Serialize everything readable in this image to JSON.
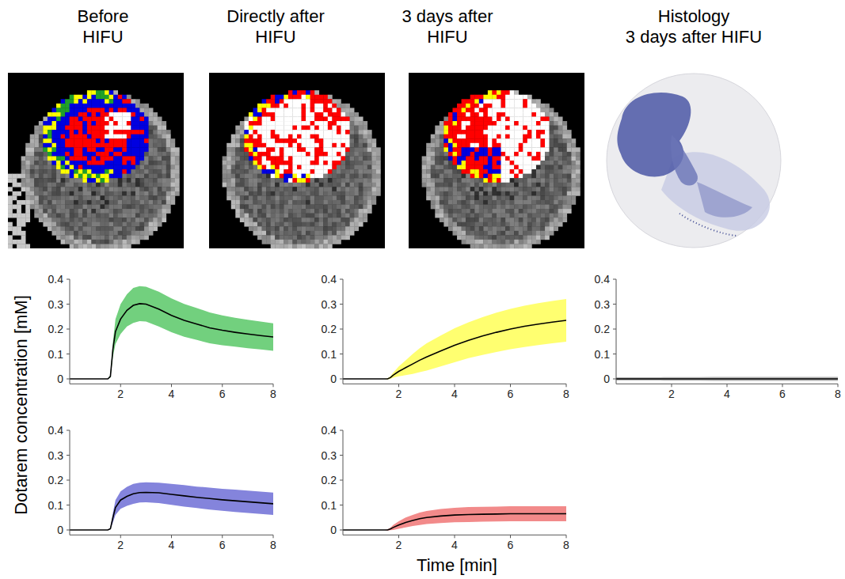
{
  "figure": {
    "column_titles": [
      "Before\nHIFU",
      "Directly after\nHIFU",
      "3 days after\nHIFU",
      "Histology\n3 days after HIFU"
    ],
    "y_label": "Dotarem concentration [mM]",
    "x_label": "Time [min]"
  },
  "chart_data": [
    {
      "type": "line",
      "x": [
        0,
        0.5,
        1,
        1.5,
        1.6,
        1.7,
        1.8,
        2,
        2.25,
        2.5,
        2.75,
        3,
        3.5,
        4,
        4.5,
        5,
        5.5,
        6,
        6.5,
        7,
        7.5,
        8
      ],
      "series": [
        {
          "color": "#72d07e",
          "values": [
            0,
            0,
            0,
            0,
            0.01,
            0.12,
            0.19,
            0.24,
            0.275,
            0.295,
            0.302,
            0.3,
            0.28,
            0.255,
            0.235,
            0.22,
            0.205,
            0.195,
            0.187,
            0.18,
            0.174,
            0.168
          ],
          "error": [
            0,
            0,
            0,
            0,
            0.005,
            0.03,
            0.05,
            0.06,
            0.065,
            0.07,
            0.07,
            0.07,
            0.07,
            0.068,
            0.066,
            0.064,
            0.062,
            0.06,
            0.058,
            0.057,
            0.056,
            0.055
          ]
        }
      ],
      "xlim": [
        0,
        8
      ],
      "ylim": [
        -0.02,
        0.4
      ],
      "xticks": [
        2,
        4,
        6,
        8
      ],
      "yticks": [
        0,
        0.1,
        0.2,
        0.3,
        0.4
      ]
    },
    {
      "type": "line",
      "x": [
        0,
        0.5,
        1,
        1.5,
        1.6,
        1.7,
        1.8,
        2,
        2.25,
        2.5,
        2.75,
        3,
        3.5,
        4,
        4.5,
        5,
        5.5,
        6,
        6.5,
        7,
        7.5,
        8
      ],
      "series": [
        {
          "color": "#ffff70",
          "values": [
            0,
            0,
            0,
            0,
            0,
            0.005,
            0.015,
            0.03,
            0.045,
            0.06,
            0.075,
            0.088,
            0.112,
            0.135,
            0.155,
            0.172,
            0.187,
            0.2,
            0.211,
            0.22,
            0.228,
            0.235
          ],
          "error": [
            0,
            0,
            0,
            0,
            0.002,
            0.005,
            0.01,
            0.02,
            0.03,
            0.04,
            0.048,
            0.055,
            0.062,
            0.068,
            0.072,
            0.076,
            0.079,
            0.081,
            0.083,
            0.084,
            0.085,
            0.086
          ]
        }
      ],
      "xlim": [
        0,
        8
      ],
      "ylim": [
        -0.02,
        0.4
      ],
      "xticks": [
        2,
        4,
        6,
        8
      ],
      "yticks": [
        0,
        0.1,
        0.2,
        0.3,
        0.4
      ]
    },
    {
      "type": "line",
      "x": [
        0,
        0.5,
        1,
        1.5,
        1.6,
        1.7,
        1.8,
        2,
        2.25,
        2.5,
        2.75,
        3,
        3.5,
        4,
        4.5,
        5,
        5.5,
        6,
        6.5,
        7,
        7.5,
        8
      ],
      "series": [
        {
          "color": "#b0b0b0",
          "values": [
            0,
            0,
            0,
            0,
            0,
            0,
            0,
            0,
            0,
            0,
            0,
            0,
            0,
            0,
            0,
            0,
            0,
            0,
            0,
            0,
            0,
            0
          ],
          "error": [
            0.006,
            0.006,
            0.006,
            0.006,
            0.006,
            0.007,
            0.007,
            0.007,
            0.007,
            0.007,
            0.007,
            0.007,
            0.008,
            0.008,
            0.008,
            0.008,
            0.008,
            0.008,
            0.008,
            0.008,
            0.008,
            0.008
          ]
        }
      ],
      "xlim": [
        0,
        8
      ],
      "ylim": [
        -0.02,
        0.4
      ],
      "xticks": [
        2,
        4,
        6,
        8
      ],
      "yticks": [
        0,
        0.1,
        0.2,
        0.3,
        0.4
      ]
    },
    {
      "type": "line",
      "x": [
        0,
        0.5,
        1,
        1.5,
        1.6,
        1.7,
        1.8,
        2,
        2.25,
        2.5,
        2.75,
        3,
        3.5,
        4,
        4.5,
        5,
        5.5,
        6,
        6.5,
        7,
        7.5,
        8
      ],
      "series": [
        {
          "color": "#8484dc",
          "values": [
            0,
            0,
            0,
            0,
            0.005,
            0.05,
            0.09,
            0.12,
            0.135,
            0.145,
            0.15,
            0.151,
            0.149,
            0.143,
            0.137,
            0.131,
            0.126,
            0.121,
            0.117,
            0.113,
            0.109,
            0.105
          ],
          "error": [
            0,
            0,
            0,
            0,
            0.003,
            0.02,
            0.03,
            0.035,
            0.038,
            0.04,
            0.04,
            0.04,
            0.041,
            0.042,
            0.043,
            0.043,
            0.044,
            0.044,
            0.045,
            0.045,
            0.045,
            0.045
          ]
        }
      ],
      "xlim": [
        0,
        8
      ],
      "ylim": [
        -0.02,
        0.4
      ],
      "xticks": [
        2,
        4,
        6,
        8
      ],
      "yticks": [
        0,
        0.1,
        0.2,
        0.3,
        0.4
      ]
    },
    {
      "type": "line",
      "x": [
        0,
        0.5,
        1,
        1.5,
        1.6,
        1.7,
        1.8,
        2,
        2.25,
        2.5,
        2.75,
        3,
        3.5,
        4,
        4.5,
        5,
        5.5,
        6,
        6.5,
        7,
        7.5,
        8
      ],
      "series": [
        {
          "color": "#f28a8a",
          "values": [
            0,
            0,
            0,
            0,
            0,
            0.004,
            0.01,
            0.02,
            0.03,
            0.038,
            0.045,
            0.05,
            0.056,
            0.06,
            0.062,
            0.063,
            0.064,
            0.065,
            0.065,
            0.065,
            0.065,
            0.065
          ],
          "error": [
            0,
            0,
            0,
            0,
            0.002,
            0.005,
            0.01,
            0.015,
            0.02,
            0.022,
            0.025,
            0.026,
            0.028,
            0.029,
            0.03,
            0.03,
            0.03,
            0.03,
            0.03,
            0.03,
            0.03,
            0.03
          ]
        }
      ],
      "xlim": [
        0,
        8
      ],
      "ylim": [
        -0.02,
        0.4
      ],
      "xticks": [
        2,
        4,
        6,
        8
      ],
      "yticks": [
        0,
        0.1,
        0.2,
        0.3,
        0.4
      ]
    }
  ]
}
